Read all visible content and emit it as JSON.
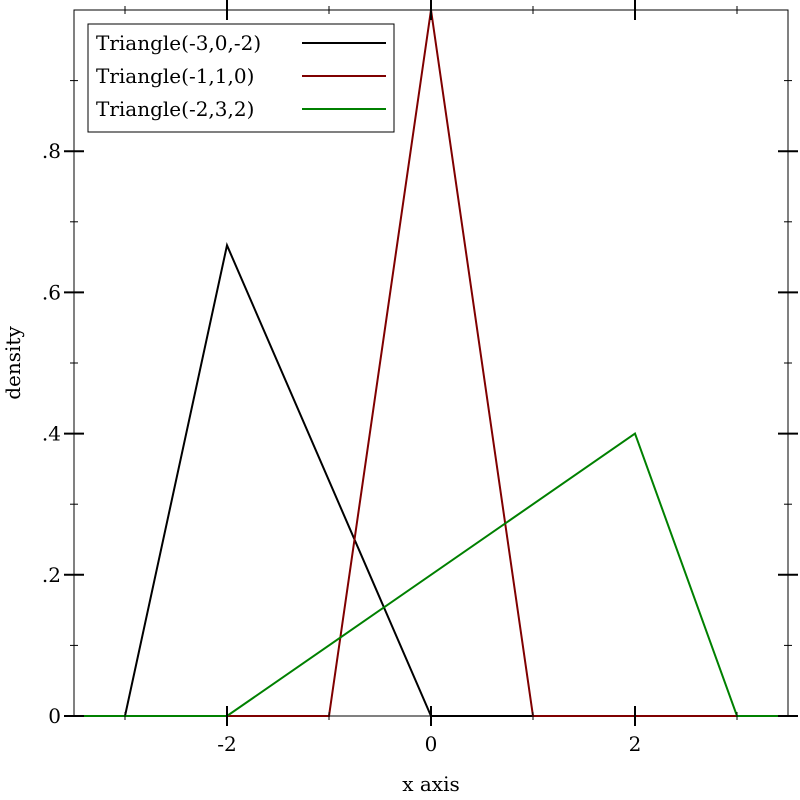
{
  "chart_data": {
    "type": "line",
    "title": "",
    "xlabel": "x axis",
    "ylabel": "density",
    "xlim": [
      -3.5,
      3.5
    ],
    "ylim": [
      0,
      1.0
    ],
    "grid": false,
    "legend_position": "top-left",
    "x_ticks": [
      {
        "value": -2,
        "label": "-2"
      },
      {
        "value": 0,
        "label": "0"
      },
      {
        "value": 2,
        "label": "2"
      }
    ],
    "y_ticks": [
      {
        "value": 0,
        "label": "0"
      },
      {
        "value": 0.2,
        "label": ".2"
      },
      {
        "value": 0.4,
        "label": ".4"
      },
      {
        "value": 0.6,
        "label": ".6"
      },
      {
        "value": 0.8,
        "label": ".8"
      }
    ],
    "series": [
      {
        "name": "Triangle(-3,0,-2)",
        "color": "#000000",
        "x": [
          -3.5,
          -3,
          -2,
          0,
          3.5
        ],
        "y": [
          0,
          0,
          0.6667,
          0,
          0
        ]
      },
      {
        "name": "Triangle(-1,1,0)",
        "color": "#7f0000",
        "x": [
          -3.5,
          -1,
          0,
          1,
          3.5
        ],
        "y": [
          0,
          0,
          1.0,
          0,
          0
        ]
      },
      {
        "name": "Triangle(-2,3,2)",
        "color": "#008000",
        "x": [
          -3.5,
          -2,
          2,
          3,
          3.5
        ],
        "y": [
          0,
          0,
          0.4,
          0,
          0
        ]
      }
    ]
  }
}
